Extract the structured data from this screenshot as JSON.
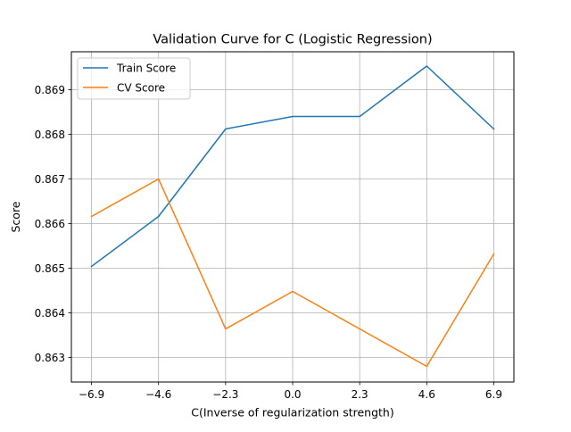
{
  "chart_data": {
    "type": "line",
    "title": "Validation Curve for C (Logistic Regression)",
    "xlabel": "C(Inverse of regularization strength)",
    "ylabel": "Score",
    "x": [
      -6.9,
      -4.6,
      -2.3,
      0.0,
      2.3,
      4.6,
      6.9
    ],
    "x_tick_labels": [
      "−6.9",
      "−4.6",
      "−2.3",
      "0.0",
      "2.3",
      "4.6",
      "6.9"
    ],
    "y_ticks": [
      0.863,
      0.864,
      0.865,
      0.866,
      0.867,
      0.868,
      0.869
    ],
    "y_tick_labels": [
      "0.863",
      "0.864",
      "0.865",
      "0.866",
      "0.867",
      "0.868",
      "0.869"
    ],
    "xlim": [
      -7.59,
      7.59
    ],
    "ylim": [
      0.86245,
      0.86985
    ],
    "grid": true,
    "legend_position": "top-left",
    "series": [
      {
        "name": "Train Score",
        "color": "#1f77b4",
        "values": [
          0.86504,
          0.86616,
          0.86812,
          0.8684,
          0.8684,
          0.86953,
          0.86812
        ]
      },
      {
        "name": "CV Score",
        "color": "#ff7f0e",
        "values": [
          0.86616,
          0.867,
          0.86364,
          0.86448,
          0.86364,
          0.8628,
          0.86532
        ]
      }
    ]
  }
}
